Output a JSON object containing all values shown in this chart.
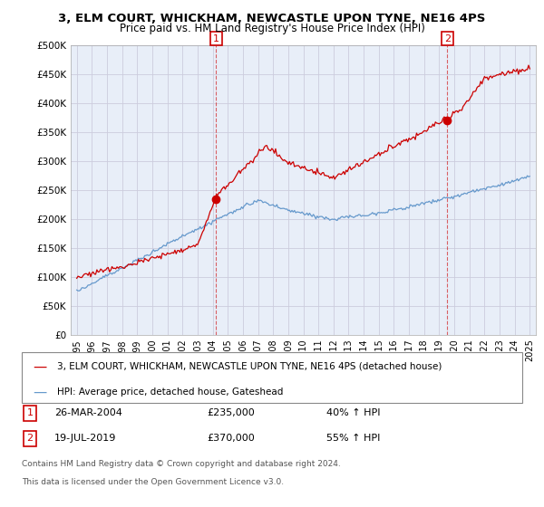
{
  "title": "3, ELM COURT, WHICKHAM, NEWCASTLE UPON TYNE, NE16 4PS",
  "subtitle": "Price paid vs. HM Land Registry's House Price Index (HPI)",
  "ylim": [
    0,
    500000
  ],
  "yticks": [
    0,
    50000,
    100000,
    150000,
    200000,
    250000,
    300000,
    350000,
    400000,
    450000,
    500000
  ],
  "legend_entry1": "3, ELM COURT, WHICKHAM, NEWCASTLE UPON TYNE, NE16 4PS (detached house)",
  "legend_entry2": "HPI: Average price, detached house, Gateshead",
  "annotation1_label": "1",
  "annotation1_date": "26-MAR-2004",
  "annotation1_price": "£235,000",
  "annotation1_hpi": "40% ↑ HPI",
  "annotation2_label": "2",
  "annotation2_date": "19-JUL-2019",
  "annotation2_price": "£370,000",
  "annotation2_hpi": "55% ↑ HPI",
  "footnote1": "Contains HM Land Registry data © Crown copyright and database right 2024.",
  "footnote2": "This data is licensed under the Open Government Licence v3.0.",
  "red_color": "#cc0000",
  "blue_color": "#6699cc",
  "grid_color": "#ccccdd",
  "background_color": "#e8eef8",
  "sale1_x": 2004.23,
  "sale1_y": 235000,
  "sale2_x": 2019.54,
  "sale2_y": 370000,
  "xlim_left": 1994.6,
  "xlim_right": 2025.4
}
